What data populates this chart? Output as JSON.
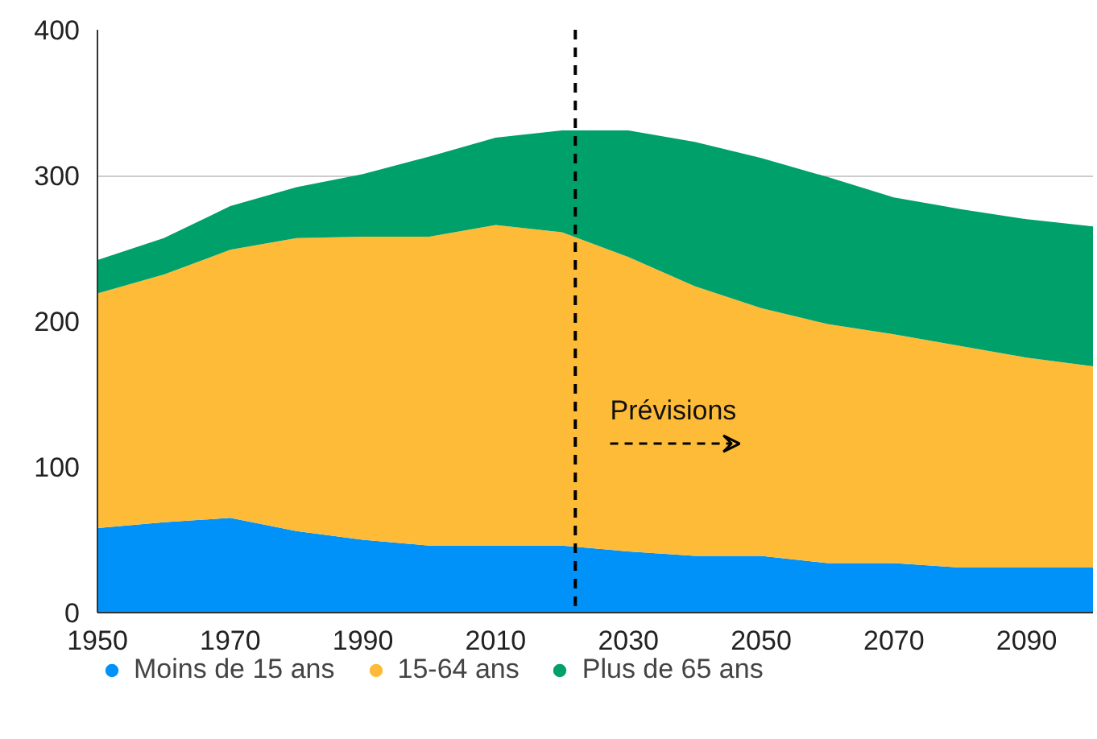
{
  "chart_data": {
    "type": "area",
    "stacked": true,
    "x": [
      1950,
      1960,
      1970,
      1980,
      1990,
      2000,
      2010,
      2020,
      2030,
      2040,
      2050,
      2060,
      2070,
      2080,
      2090,
      2100
    ],
    "series": [
      {
        "name": "Moins de 15 ans",
        "color": "#0092f8",
        "values": [
          58,
          62,
          65,
          56,
          50,
          46,
          46,
          46,
          42,
          39,
          39,
          34,
          34,
          31,
          31,
          31
        ]
      },
      {
        "name": "15-64 ans",
        "color": "#fdbb38",
        "values": [
          161,
          170,
          184,
          201,
          208,
          212,
          220,
          215,
          202,
          185,
          170,
          164,
          157,
          152,
          144,
          138
        ]
      },
      {
        "name": "Plus de 65 ans",
        "color": "#00a06b",
        "values": [
          23,
          25,
          30,
          35,
          43,
          55,
          60,
          70,
          87,
          99,
          103,
          101,
          94,
          94,
          95,
          96
        ]
      }
    ],
    "xlim": [
      1950,
      2100
    ],
    "xticks": [
      1950,
      1970,
      1990,
      2010,
      2030,
      2050,
      2070,
      2090
    ],
    "ylim": [
      0,
      400
    ],
    "yticks": [
      0,
      100,
      200,
      300,
      400
    ],
    "grid": "y",
    "legend": "bottom",
    "ref_lines": [
      {
        "axis": "x",
        "value": 2022,
        "color": "#000000",
        "line_style": "dashed"
      }
    ],
    "annotations": [
      "Prévisions"
    ]
  }
}
